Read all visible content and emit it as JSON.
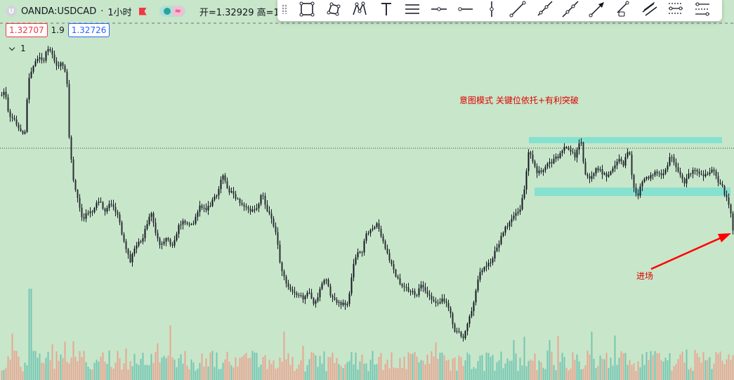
{
  "symbol": {
    "logo_letter": "U",
    "name": "OANDA:USDCAD",
    "separator": "·",
    "interval": "1小时",
    "ohlc_label": "开=1.32929 高=1"
  },
  "prices": {
    "sell": "1.32707",
    "spread": "1.9",
    "buy": "1.32726"
  },
  "indicator": {
    "count": "1"
  },
  "toolbar": {
    "tools": [
      {
        "icon": "rectangle-icon"
      },
      {
        "icon": "polygon-icon"
      },
      {
        "icon": "path-pattern-icon"
      },
      {
        "icon": "text-icon"
      },
      {
        "icon": "horizontal-ray-bars-icon"
      },
      {
        "icon": "horizontal-line-icon"
      },
      {
        "icon": "horizontal-ray-icon"
      },
      {
        "icon": "vertical-line-icon"
      },
      {
        "icon": "trend-line-icon"
      },
      {
        "icon": "ray-icon"
      },
      {
        "icon": "extended-line-icon"
      },
      {
        "icon": "arrow-line-icon"
      },
      {
        "icon": "info-line-icon"
      },
      {
        "icon": "parallel-channel-icon"
      },
      {
        "icon": "fib-retracement-icon"
      },
      {
        "icon": "fib-extension-icon"
      }
    ]
  },
  "annotations": {
    "note": "意图模式 关键位依托+有利突破",
    "entry": "进场"
  },
  "colors": {
    "background": "#c8e6c9",
    "candles": "#131722",
    "zone_fill": "#7fe0d0",
    "arrow": "#ff0000",
    "volume_up": "#66bfb0",
    "volume_down": "#ee9a8a"
  }
}
